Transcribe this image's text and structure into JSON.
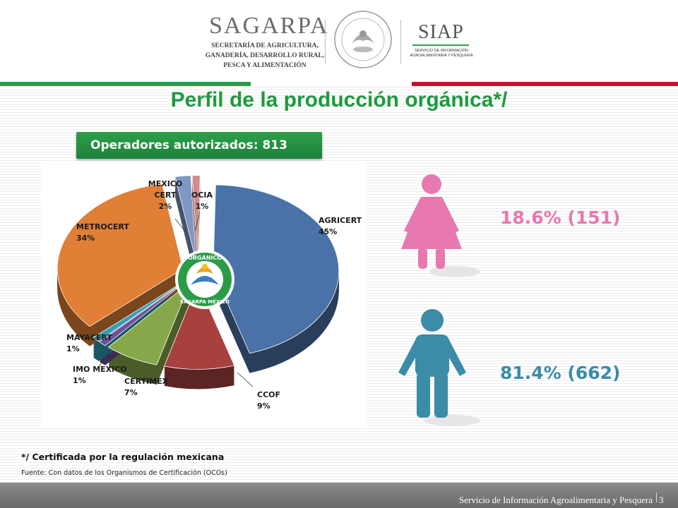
{
  "header": {
    "logo_name": "SAGARPA",
    "logo_subtitle_lines": [
      "SECRETARÍA DE AGRICULTURA,",
      "GANADERÍA, DESARROLLO RURAL,",
      "PESCA Y ALIMENTACIÓN"
    ],
    "siap_name": "SIAP",
    "siap_subtitle_lines": [
      "SERVICIO DE INFORMACIÓN",
      "AGROALIMENTARIA Y PESQUERA"
    ],
    "colors": {
      "green": "#2a9b47",
      "red": "#c8102e"
    }
  },
  "title": "Perfil de la producción orgánica*/",
  "operators_badge": "Operadores autorizados: 813",
  "chart_data": {
    "type": "pie",
    "slices": [
      {
        "name": "AGRICERT",
        "value": 45,
        "label": "45%",
        "color": "#4a72a8"
      },
      {
        "name": "CCOF",
        "value": 9,
        "label": "9%",
        "color": "#a8413d"
      },
      {
        "name": "CERTIMEX",
        "value": 7,
        "label": "7%",
        "color": "#86a84a"
      },
      {
        "name": "IMO MEXICO",
        "value": 1,
        "label": "1%",
        "color": "#6f4f9e"
      },
      {
        "name": "MAYACERT",
        "value": 1,
        "label": "1%",
        "color": "#2f9fb6"
      },
      {
        "name": "METROCERT",
        "value": 34,
        "label": "34%",
        "color": "#e07f35"
      },
      {
        "name": "MEXICO CERT",
        "value": 2,
        "label": "2%",
        "color": "#7f97c4"
      },
      {
        "name": "OCIA",
        "value": 1,
        "label": "1%",
        "color": "#d28a89"
      }
    ],
    "center_logo_text": [
      "ORGÁNICO",
      "SAGARPA MÉXICO"
    ]
  },
  "stats": {
    "female": {
      "text": "18.6% (151)",
      "color": "#e879b0"
    },
    "male": {
      "text": "81.4% (662)",
      "color": "#3b8ca7"
    }
  },
  "footnote": "*/ Certificada por la regulación mexicana",
  "source": "Fuente: Con datos de los Organismos de Certificación (OCOs)",
  "footer": {
    "text": "Servicio de Información Agroalimentaria y Pesquera",
    "page": "3"
  }
}
